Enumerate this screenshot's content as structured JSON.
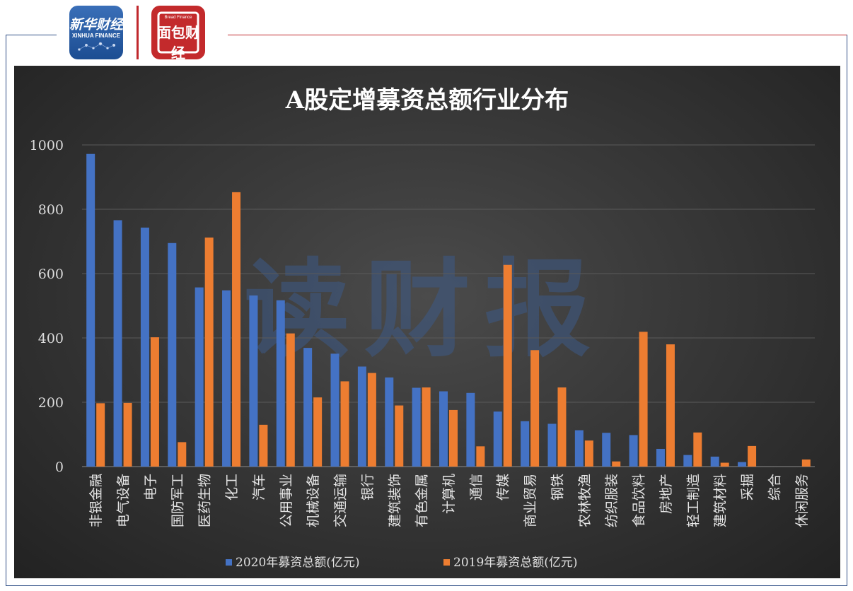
{
  "header": {
    "logo_left": {
      "name": "新华财经",
      "sub": "XINHUA FINANCE"
    },
    "logo_right": {
      "name": "面包财经",
      "sub": "Bread Finance"
    }
  },
  "watermark": "读财报",
  "colors": {
    "series_2020": "#4472c4",
    "series_2019": "#ed7d31",
    "frame_blue": "#2f4f86",
    "frame_red": "#c0282d"
  },
  "chart_data": {
    "type": "bar",
    "title": "A股定增募资总额行业分布",
    "xlabel": "",
    "ylabel": "",
    "ylim": [
      0,
      1000
    ],
    "yticks": [
      0,
      200,
      400,
      600,
      800,
      1000
    ],
    "grid": true,
    "legend_position": "bottom",
    "categories": [
      "非银金融",
      "电气设备",
      "电子",
      "国防军工",
      "医药生物",
      "化工",
      "汽车",
      "公用事业",
      "机械设备",
      "交通运输",
      "银行",
      "建筑装饰",
      "有色金属",
      "计算机",
      "通信",
      "传媒",
      "商业贸易",
      "钢铁",
      "农林牧渔",
      "纺织服装",
      "食品饮料",
      "房地产",
      "轻工制造",
      "建筑材料",
      "采掘",
      "综合",
      "休闲服务"
    ],
    "series": [
      {
        "name": "2020年募资总额(亿元)",
        "color": "#4472c4",
        "values": [
          972,
          766,
          743,
          695,
          557,
          548,
          532,
          517,
          369,
          351,
          311,
          277,
          245,
          234,
          229,
          171,
          141,
          133,
          113,
          105,
          98,
          55,
          36,
          31,
          14,
          0,
          0
        ]
      },
      {
        "name": "2019年募资总额(亿元)",
        "color": "#ed7d31",
        "values": [
          197,
          198,
          402,
          76,
          712,
          853,
          130,
          414,
          215,
          265,
          291,
          190,
          246,
          176,
          63,
          627,
          362,
          246,
          81,
          16,
          419,
          380,
          106,
          12,
          64,
          0,
          22
        ]
      }
    ]
  }
}
